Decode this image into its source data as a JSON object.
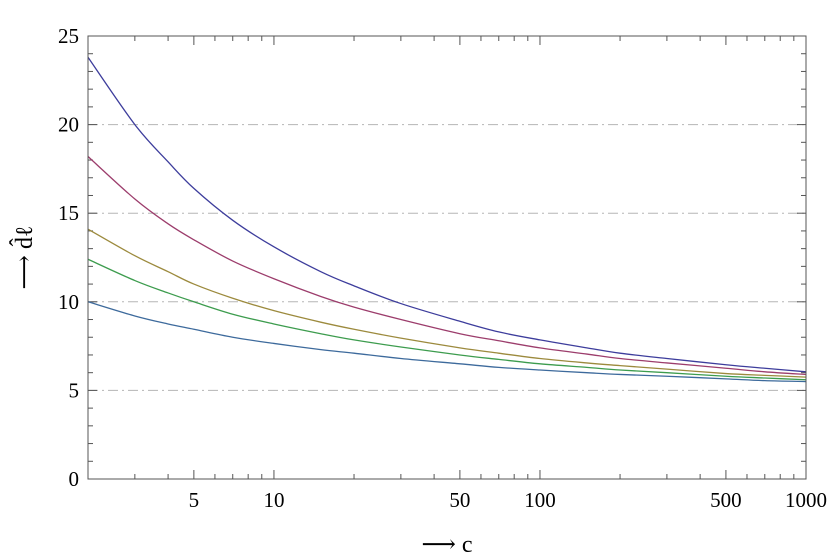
{
  "chart_data": {
    "type": "line",
    "title": "",
    "xlabel": "⟶ c",
    "ylabel": "⟶ d̂ℓ",
    "xscale": "log",
    "xlim": [
      2,
      1000
    ],
    "ylim": [
      0,
      25
    ],
    "xticks": [
      5,
      10,
      50,
      100,
      500,
      1000
    ],
    "yticks": [
      0,
      5,
      10,
      15,
      20,
      25
    ],
    "grid": "horizontal dash-dot at 5, 10, 15, 20",
    "legend": "none",
    "x": [
      2,
      3,
      4,
      5,
      7,
      10,
      15,
      20,
      30,
      50,
      70,
      100,
      150,
      200,
      300,
      500,
      700,
      1000
    ],
    "series": [
      {
        "color": "#3d3d9c",
        "values": [
          23.8,
          20.0,
          17.9,
          16.4,
          14.6,
          13.1,
          11.7,
          10.9,
          9.9,
          8.9,
          8.3,
          7.85,
          7.4,
          7.1,
          6.8,
          6.45,
          6.25,
          6.05
        ]
      },
      {
        "color": "#9c3d6c",
        "values": [
          18.2,
          15.8,
          14.4,
          13.5,
          12.3,
          11.3,
          10.3,
          9.7,
          9.0,
          8.2,
          7.8,
          7.4,
          7.05,
          6.8,
          6.55,
          6.25,
          6.05,
          5.9
        ]
      },
      {
        "color": "#9c8a3d",
        "values": [
          14.1,
          12.6,
          11.7,
          11.0,
          10.2,
          9.5,
          8.85,
          8.45,
          7.95,
          7.4,
          7.1,
          6.8,
          6.55,
          6.4,
          6.2,
          5.95,
          5.85,
          5.75
        ]
      },
      {
        "color": "#3d9c4e",
        "values": [
          12.4,
          11.2,
          10.5,
          10.0,
          9.3,
          8.75,
          8.2,
          7.85,
          7.45,
          7.0,
          6.75,
          6.5,
          6.3,
          6.15,
          6.0,
          5.8,
          5.7,
          5.6
        ]
      },
      {
        "color": "#3d6a9c",
        "values": [
          10.0,
          9.2,
          8.75,
          8.45,
          8.0,
          7.65,
          7.3,
          7.1,
          6.8,
          6.5,
          6.3,
          6.15,
          6.0,
          5.9,
          5.8,
          5.65,
          5.55,
          5.5
        ]
      }
    ]
  }
}
